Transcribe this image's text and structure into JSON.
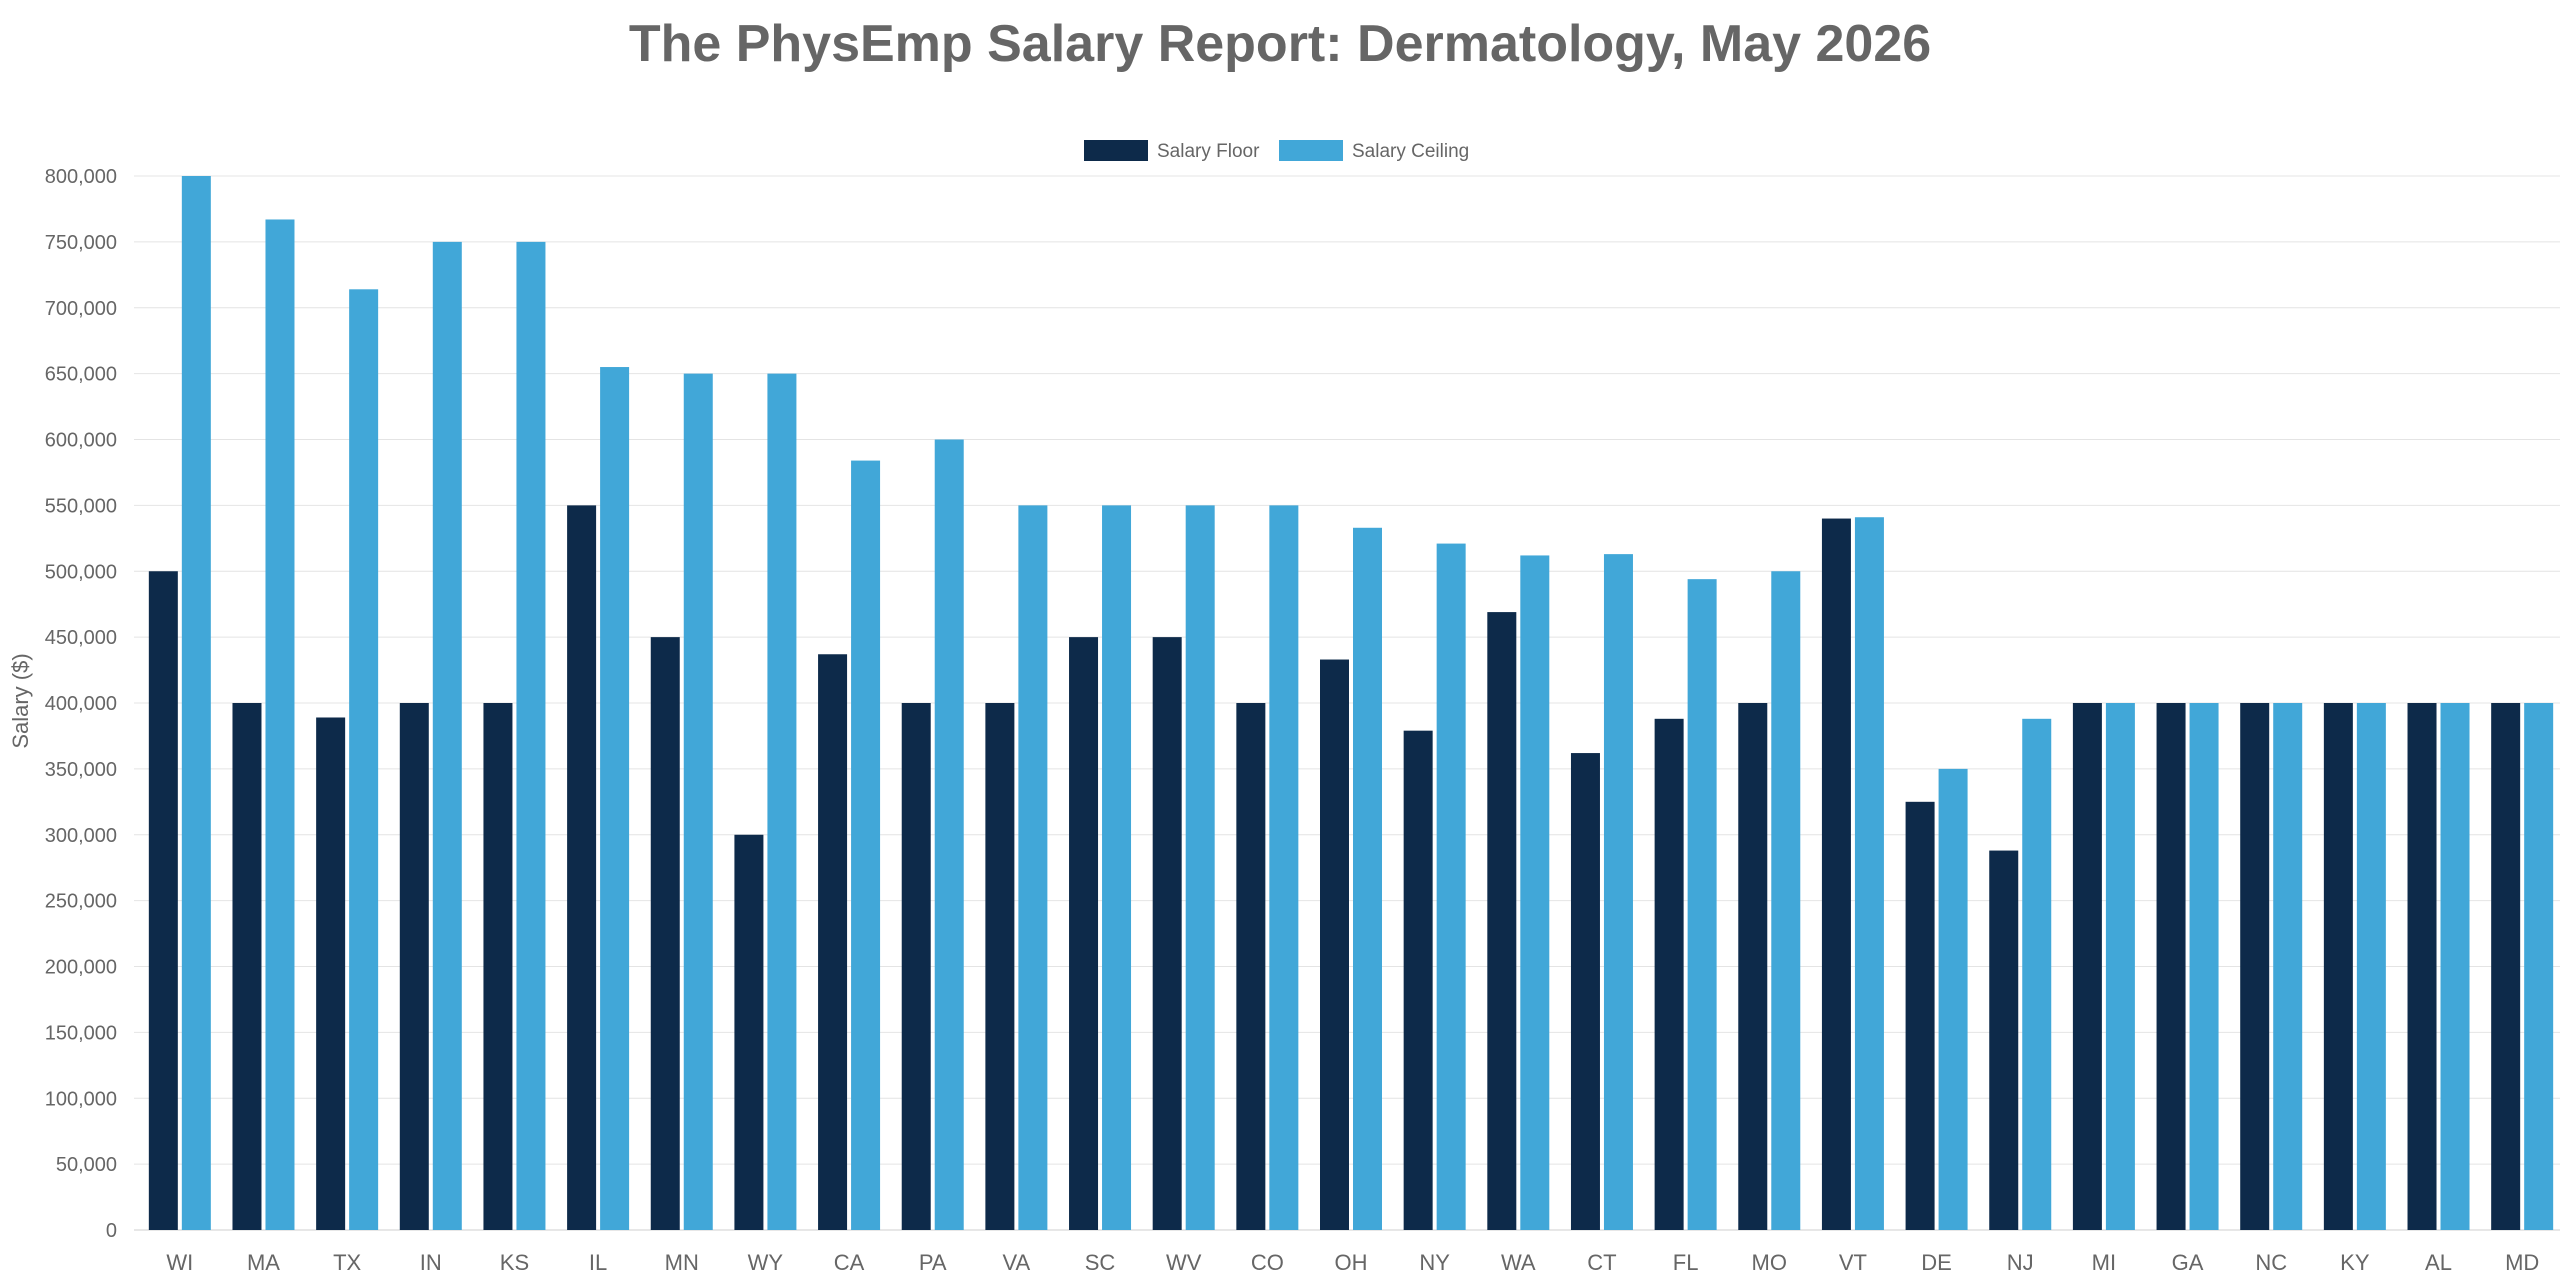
{
  "chart_data": {
    "type": "bar",
    "title": "The PhysEmp Salary Report: Dermatology, May 2026",
    "ylabel": "Salary ($)",
    "xlabel": "",
    "ylim": [
      0,
      800000
    ],
    "yticks": [
      0,
      50000,
      100000,
      150000,
      200000,
      250000,
      300000,
      350000,
      400000,
      450000,
      500000,
      550000,
      600000,
      650000,
      700000,
      750000,
      800000
    ],
    "ytick_labels": [
      "0",
      "50,000",
      "100,000",
      "150,000",
      "200,000",
      "250,000",
      "300,000",
      "350,000",
      "400,000",
      "450,000",
      "500,000",
      "550,000",
      "600,000",
      "650,000",
      "700,000",
      "750,000",
      "800,000"
    ],
    "grid": true,
    "legend_position": "top-center",
    "categories": [
      "WI",
      "MA",
      "TX",
      "IN",
      "KS",
      "IL",
      "MN",
      "WY",
      "CA",
      "PA",
      "VA",
      "SC",
      "WV",
      "CO",
      "OH",
      "NY",
      "WA",
      "CT",
      "FL",
      "MO",
      "VT",
      "DE",
      "NJ",
      "MI",
      "GA",
      "NC",
      "KY",
      "AL",
      "MD"
    ],
    "series": [
      {
        "name": "Salary Floor",
        "color": "#0d2a4a",
        "values": [
          500000,
          400000,
          389000,
          400000,
          400000,
          550000,
          450000,
          300000,
          437000,
          400000,
          400000,
          450000,
          450000,
          400000,
          433000,
          379000,
          469000,
          362000,
          388000,
          400000,
          540000,
          325000,
          288000,
          400000,
          400000,
          400000,
          400000,
          400000,
          400000
        ]
      },
      {
        "name": "Salary Ceiling",
        "color": "#41a7d8",
        "values": [
          800000,
          767000,
          714000,
          750000,
          750000,
          655000,
          650000,
          650000,
          584000,
          600000,
          550000,
          550000,
          550000,
          550000,
          533000,
          521000,
          512000,
          513000,
          494000,
          500000,
          541000,
          350000,
          388000,
          400000,
          400000,
          400000,
          400000,
          400000,
          400000
        ]
      }
    ]
  }
}
